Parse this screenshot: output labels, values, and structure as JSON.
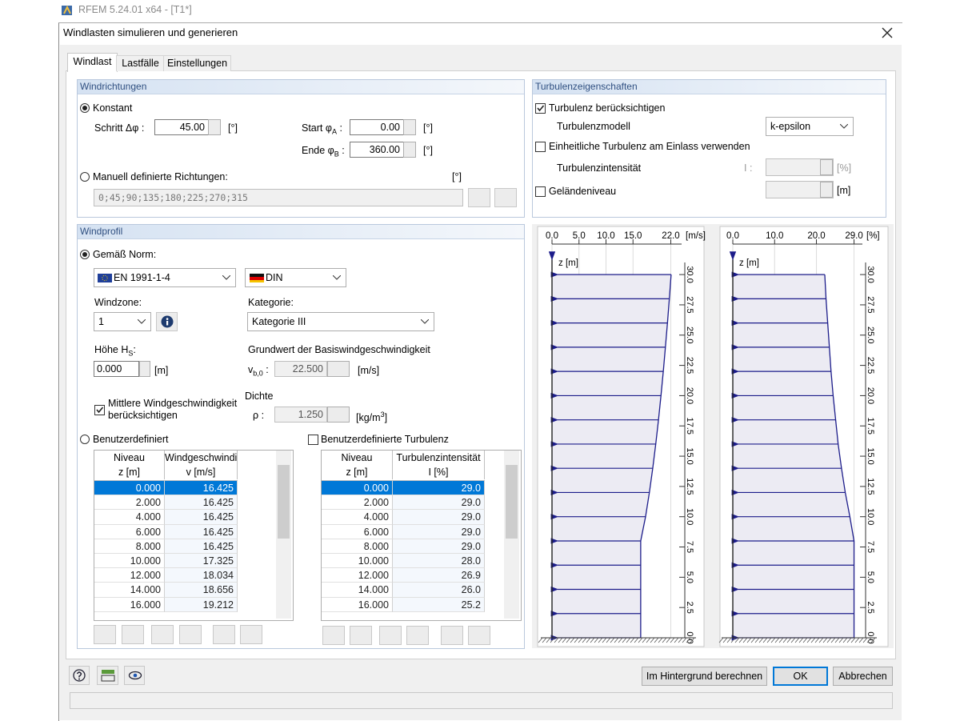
{
  "app_title": "RFEM 5.24.01 x64 - [T1*]",
  "dialog": {
    "title": "Windlasten simulieren und generieren",
    "tabs": [
      "Windlast",
      "Lastfälle",
      "Einstellungen"
    ]
  },
  "windrichtungen": {
    "title": "Windrichtungen",
    "konstant": "Konstant",
    "schritt_label": "Schritt Δφ :",
    "schritt": "45.00",
    "schritt_unit": "[°]",
    "start_label": [
      "Start φ",
      "A",
      " :"
    ],
    "start": "0.00",
    "start_unit": "[°]",
    "ende_label": [
      "Ende φ",
      "B",
      " :"
    ],
    "ende": "360.00",
    "ende_unit": "[°]",
    "manuell": "Manuell definierte Richtungen:",
    "manuell_unit": "[°]",
    "manuell_value": "0;45;90;135;180;225;270;315"
  },
  "turbulenz": {
    "title": "Turbulenzeigenschaften",
    "beruecksichtigen": "Turbulenz berücksichtigen",
    "modell_label": "Turbulenzmodell",
    "modell": "k-epsilon",
    "einheitlich": "Einheitliche Turbulenz am Einlass verwenden",
    "intensitaet_label": "Turbulenzintensität",
    "i_label": "I :",
    "i_unit": "[%]",
    "gelaende": "Geländeniveau",
    "gelaende_unit": "[m]"
  },
  "windprofil": {
    "title": "Windprofil",
    "gemaess_norm": "Gemäß Norm:",
    "norm": "EN 1991-1-4",
    "anhang": "DIN",
    "windzone_label": "Windzone:",
    "windzone": "1",
    "kategorie_label": "Kategorie:",
    "kategorie": "Kategorie III",
    "hoehe_label": [
      "Höhe H",
      "S",
      ":"
    ],
    "hoehe": "0.000",
    "hoehe_unit": "[m]",
    "grundwert_label": "Grundwert der Basiswindgeschwindigkeit",
    "vb_label": [
      "v",
      "b,0",
      " :"
    ],
    "vb": "22.500",
    "vb_unit": "[m/s]",
    "dichte_label": "Dichte",
    "rho_label": "ρ :",
    "rho": "1.250",
    "rho_unit": [
      "[kg/m",
      "3",
      "]"
    ],
    "mittlere": [
      "Mittlere Windgeschwindigkeit",
      "berücksichtigen"
    ],
    "benutzerdefiniert": "Benutzerdefiniert",
    "benutzer_turbulenz": "Benutzerdefinierte Turbulenz"
  },
  "table_speed": {
    "header": [
      [
        "Niveau",
        "z [m]"
      ],
      [
        "Windgeschwindi",
        "v [m/s]"
      ]
    ],
    "rows": [
      [
        "0.000",
        "16.425"
      ],
      [
        "2.000",
        "16.425"
      ],
      [
        "4.000",
        "16.425"
      ],
      [
        "6.000",
        "16.425"
      ],
      [
        "8.000",
        "16.425"
      ],
      [
        "10.000",
        "17.325"
      ],
      [
        "12.000",
        "18.034"
      ],
      [
        "14.000",
        "18.656"
      ],
      [
        "16.000",
        "19.212"
      ]
    ]
  },
  "table_turb": {
    "header": [
      [
        "Niveau",
        "z [m]"
      ],
      [
        "Turbulenzintensität",
        "I [%]"
      ]
    ],
    "rows": [
      [
        "0.000",
        "29.0"
      ],
      [
        "2.000",
        "29.0"
      ],
      [
        "4.000",
        "29.0"
      ],
      [
        "6.000",
        "29.0"
      ],
      [
        "8.000",
        "29.0"
      ],
      [
        "10.000",
        "28.0"
      ],
      [
        "12.000",
        "26.9"
      ],
      [
        "14.000",
        "26.0"
      ],
      [
        "16.000",
        "25.2"
      ]
    ]
  },
  "buttons": [
    "Im Hintergrund berechnen",
    "OK",
    "Abbrechen"
  ],
  "chart_data": [
    {
      "type": "line",
      "xlabel": "[m/s]",
      "ylabel": "z [m]",
      "color": "#1c1c8a",
      "fill": "#ecebf3",
      "grid": true,
      "y": [
        0,
        2,
        4,
        6,
        8,
        10,
        12,
        14,
        16,
        18,
        20,
        22,
        24,
        26,
        28,
        30
      ],
      "values": [
        16.425,
        16.425,
        16.425,
        16.425,
        16.425,
        17.325,
        18.034,
        18.656,
        19.212,
        19.72,
        20.18,
        20.61,
        21.0,
        21.38,
        21.73,
        22.06
      ],
      "xlim": [
        0,
        24
      ],
      "xticks": [
        {
          "value": 0,
          "label": "0.0"
        },
        {
          "value": 5,
          "label": "5.0"
        },
        {
          "value": 10,
          "label": "10.0"
        },
        {
          "value": 15,
          "label": "15.0"
        },
        {
          "value": 22,
          "label": "22.0"
        }
      ],
      "ylim": [
        0,
        31
      ],
      "yticks": [
        {
          "value": 0,
          "label": "0.0"
        },
        {
          "value": 2.5,
          "label": "2.5"
        },
        {
          "value": 5,
          "label": "5.0"
        },
        {
          "value": 7.5,
          "label": "7.5"
        },
        {
          "value": 10,
          "label": "10.0"
        },
        {
          "value": 12.5,
          "label": "12.5"
        },
        {
          "value": 15,
          "label": "15.0"
        },
        {
          "value": 17.5,
          "label": "17.5"
        },
        {
          "value": 20,
          "label": "20.0"
        },
        {
          "value": 22.5,
          "label": "22.5"
        },
        {
          "value": 25,
          "label": "25.0"
        },
        {
          "value": 27.5,
          "label": "27.5"
        },
        {
          "value": 30,
          "label": "30.0"
        }
      ]
    },
    {
      "type": "line",
      "xlabel": "[%]",
      "ylabel": "z [m]",
      "color": "#1c1c8a",
      "fill": "#ecebf3",
      "grid": true,
      "y": [
        0,
        2,
        4,
        6,
        8,
        10,
        12,
        14,
        16,
        18,
        20,
        22,
        24,
        26,
        28,
        30
      ],
      "values": [
        29.0,
        29.0,
        29.0,
        29.0,
        29.0,
        28.0,
        26.9,
        26.0,
        25.2,
        24.6,
        24.0,
        23.5,
        23.1,
        22.7,
        22.3,
        22.0
      ],
      "xlim": [
        0,
        31
      ],
      "xticks": [
        {
          "value": 0,
          "label": "0.0"
        },
        {
          "value": 10,
          "label": "10.0"
        },
        {
          "value": 20,
          "label": "20.0"
        },
        {
          "value": 29,
          "label": "29.0"
        }
      ],
      "ylim": [
        0,
        31
      ],
      "yticks": [
        {
          "value": 0,
          "label": "0.0"
        },
        {
          "value": 2.5,
          "label": "2.5"
        },
        {
          "value": 5,
          "label": "5.0"
        },
        {
          "value": 7.5,
          "label": "7.5"
        },
        {
          "value": 10,
          "label": "10.0"
        },
        {
          "value": 12.5,
          "label": "12.5"
        },
        {
          "value": 15,
          "label": "15.0"
        },
        {
          "value": 17.5,
          "label": "17.5"
        },
        {
          "value": 20,
          "label": "20.0"
        },
        {
          "value": 22.5,
          "label": "22.5"
        },
        {
          "value": 25,
          "label": "25.0"
        },
        {
          "value": 27.5,
          "label": "27.5"
        },
        {
          "value": 30,
          "label": "30.0"
        }
      ]
    }
  ]
}
